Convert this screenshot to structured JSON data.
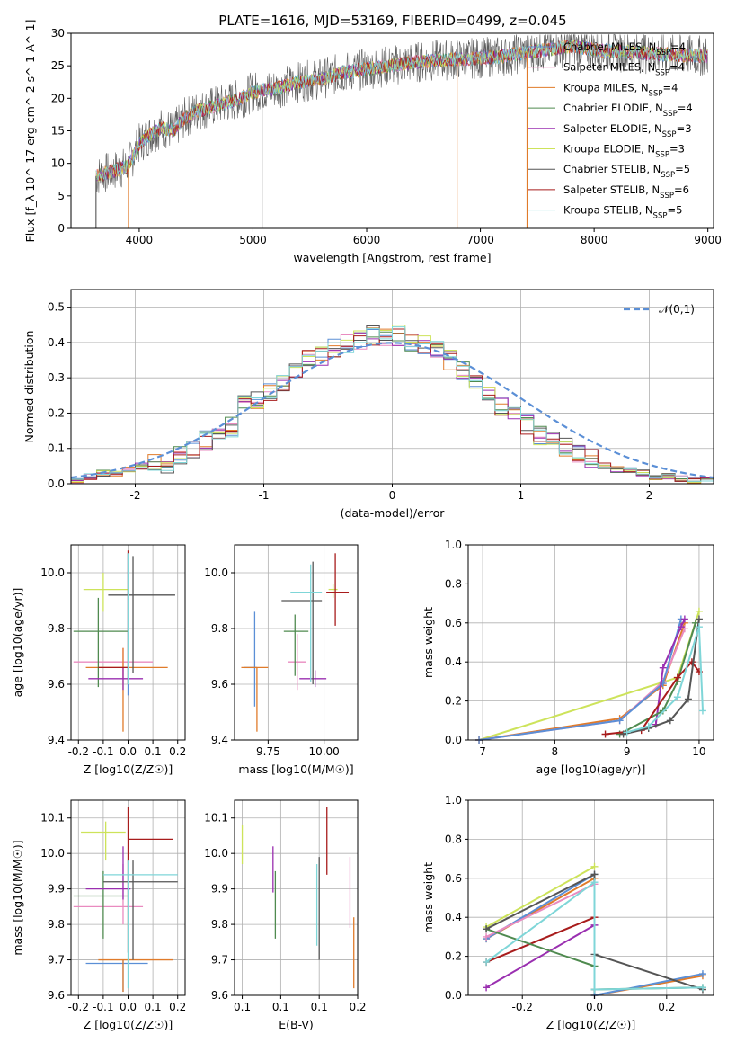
{
  "figure": {
    "title": "PLATE=1616, MJD=53169, FIBERID=0499, z=0.045"
  },
  "model_colors": {
    "Chabrier MILES": "#5b8fd6",
    "Salpeter MILES": "#e98bc0",
    "Kroupa MILES": "#e07b2a",
    "Chabrier ELODIE": "#4f8a4f",
    "Salpeter ELODIE": "#9a2fb0",
    "Kroupa ELODIE": "#cde35a",
    "Chabrier STELIB": "#555555",
    "Salpeter STELIB": "#a81c1c",
    "Kroupa STELIB": "#7fd6d8"
  },
  "chart_data": [
    {
      "type": "line",
      "panel": "spectrum",
      "title": "PLATE=1616, MJD=53169, FIBERID=0499, z=0.045",
      "xlabel": "wavelength [Angstrom, rest frame]",
      "ylabel": "Flux [f_λ 10^-17 erg cm^-2 s^-1 A^-1]",
      "xlim": [
        3400,
        9050
      ],
      "ylim": [
        0,
        30
      ],
      "xticks": [
        4000,
        5000,
        6000,
        7000,
        8000,
        9000
      ],
      "yticks": [
        0,
        5,
        10,
        15,
        20,
        25,
        30
      ],
      "legend_position": "top-right",
      "series": [
        {
          "name": "Chabrier MILES, N_SSP=4"
        },
        {
          "name": "Salpeter MILES, N_SSP=4"
        },
        {
          "name": "Kroupa MILES, N_SSP=4"
        },
        {
          "name": "Chabrier ELODIE, N_SSP=4"
        },
        {
          "name": "Salpeter ELODIE, N_SSP=3"
        },
        {
          "name": "Kroupa ELODIE, N_SSP=3"
        },
        {
          "name": "Chabrier STELIB, N_SSP=5"
        },
        {
          "name": "Salpeter STELIB, N_SSP=6"
        },
        {
          "name": "Kroupa STELIB, N_SSP=5"
        }
      ],
      "continuum_points": {
        "x": [
          3620,
          3700,
          3800,
          3900,
          4000,
          4100,
          4200,
          4300,
          4400,
          4500,
          4700,
          4900,
          5000,
          5200,
          5400,
          5600,
          5800,
          6000,
          6200,
          6400,
          6600,
          6800,
          7000,
          7200,
          7400,
          7600,
          7800,
          8000,
          8200,
          8400,
          8600,
          8800,
          9000
        ],
        "y": [
          8.0,
          8.5,
          9.0,
          9.5,
          13.0,
          14.5,
          15.5,
          15.0,
          17.0,
          18.0,
          19.0,
          20.0,
          21.0,
          21.5,
          22.5,
          23.0,
          24.0,
          24.5,
          25.0,
          25.5,
          25.8,
          26.0,
          26.2,
          26.5,
          27.0,
          27.5,
          28.0,
          27.5,
          27.2,
          27.0,
          26.8,
          26.6,
          26.5
        ]
      },
      "spike_lines": [
        {
          "x": 3620,
          "color": "#555555"
        },
        {
          "x": 3905,
          "color": "#e07b2a"
        },
        {
          "x": 5080,
          "color": "#555555"
        },
        {
          "x": 6795,
          "color": "#e07b2a"
        },
        {
          "x": 7410,
          "color": "#e07b2a"
        }
      ]
    },
    {
      "type": "line",
      "panel": "residual histogram",
      "xlabel": "(data-model)/error",
      "ylabel": "Normed distribution",
      "xlim": [
        -2.5,
        2.5
      ],
      "ylim": [
        0,
        0.55
      ],
      "xticks": [
        -2,
        -1,
        0,
        1,
        2
      ],
      "yticks": [
        0.0,
        0.1,
        0.2,
        0.3,
        0.4,
        0.5
      ],
      "grid": true,
      "legend_position": "top-right",
      "reference_curve": {
        "name": "𝒩(0,1)",
        "style": "dashed",
        "color": "#5b8fd6"
      },
      "bin_width": 0.1,
      "bin_start": -2.5,
      "approx_heights": [
        0.01,
        0.02,
        0.03,
        0.03,
        0.04,
        0.05,
        0.06,
        0.06,
        0.08,
        0.1,
        0.12,
        0.13,
        0.16,
        0.22,
        0.24,
        0.26,
        0.29,
        0.31,
        0.35,
        0.36,
        0.38,
        0.4,
        0.41,
        0.42,
        0.41,
        0.42,
        0.4,
        0.39,
        0.38,
        0.35,
        0.32,
        0.28,
        0.25,
        0.22,
        0.2,
        0.17,
        0.14,
        0.12,
        0.1,
        0.08,
        0.07,
        0.05,
        0.04,
        0.04,
        0.03,
        0.02,
        0.02,
        0.015,
        0.01,
        0.01
      ]
    },
    {
      "type": "scatter",
      "panel": "age vs Z",
      "xlabel": "Z [log10(Z/Z☉)]",
      "ylabel": "age [log10(age/yr)]",
      "xlim": [
        -0.23,
        0.23
      ],
      "ylim": [
        9.4,
        10.1
      ],
      "xticks": [
        -0.2,
        -0.1,
        0.0,
        0.1,
        0.2
      ],
      "yticks": [
        9.4,
        9.6,
        9.8,
        10.0
      ],
      "grid": true,
      "points": [
        {
          "model": "Chabrier MILES",
          "x": 0.0,
          "y": 9.62,
          "xerr": [
            0.0,
            0.0
          ],
          "yerr": [
            0.06,
            0.45
          ]
        },
        {
          "model": "Salpeter MILES",
          "x": -0.02,
          "y": 9.68,
          "xerr": [
            0.2,
            0.12
          ],
          "yerr": [
            0.06,
            0.05
          ]
        },
        {
          "model": "Kroupa MILES",
          "x": -0.02,
          "y": 9.66,
          "xerr": [
            0.15,
            0.18
          ],
          "yerr": [
            0.23,
            0.07
          ]
        },
        {
          "model": "Chabrier ELODIE",
          "x": -0.12,
          "y": 9.79,
          "xerr": [
            0.1,
            0.12
          ],
          "yerr": [
            0.2,
            0.12
          ]
        },
        {
          "model": "Salpeter ELODIE",
          "x": -0.02,
          "y": 9.62,
          "xerr": [
            0.14,
            0.08
          ],
          "yerr": [
            0.04,
            0.04
          ]
        },
        {
          "model": "Kroupa ELODIE",
          "x": -0.1,
          "y": 9.94,
          "xerr": [
            0.08,
            0.1
          ],
          "yerr": [
            0.08,
            0.06
          ]
        },
        {
          "model": "Chabrier STELIB",
          "x": 0.02,
          "y": 9.92,
          "xerr": [
            0.1,
            0.17
          ],
          "yerr": [
            0.28,
            0.14
          ]
        },
        {
          "model": "Salpeter STELIB",
          "x": 0.0,
          "y": 9.66,
          "xerr": [
            0.12,
            0.0
          ],
          "yerr": [
            0.06,
            0.42
          ]
        },
        {
          "model": "Kroupa STELIB",
          "x": 0.0,
          "y": 9.66,
          "xerr": [
            0.0,
            0.0
          ],
          "yerr": [
            0.06,
            0.41
          ]
        }
      ]
    },
    {
      "type": "scatter",
      "panel": "age vs mass",
      "xlabel": "mass [log10(M/M☉)]",
      "ylabel": "",
      "xlim": [
        9.6,
        10.15
      ],
      "ylim": [
        9.4,
        10.1
      ],
      "xticks": [
        9.75,
        10.0
      ],
      "yticks": [
        9.4,
        9.6,
        9.8,
        10.0
      ],
      "grid": true,
      "points": [
        {
          "model": "Chabrier MILES",
          "x": 9.69,
          "y": 9.66,
          "xerr": [
            0.05,
            0.01
          ],
          "yerr": [
            0.14,
            0.2
          ]
        },
        {
          "model": "Salpeter MILES",
          "x": 9.88,
          "y": 9.68,
          "xerr": [
            0.04,
            0.04
          ],
          "yerr": [
            0.1,
            0.1
          ]
        },
        {
          "model": "Kroupa MILES",
          "x": 9.7,
          "y": 9.66,
          "xerr": [
            0.07,
            0.05
          ],
          "yerr": [
            0.23,
            0.0
          ]
        },
        {
          "model": "Chabrier ELODIE",
          "x": 9.87,
          "y": 9.79,
          "xerr": [
            0.05,
            0.06
          ],
          "yerr": [
            0.16,
            0.06
          ]
        },
        {
          "model": "Salpeter ELODIE",
          "x": 9.96,
          "y": 9.62,
          "xerr": [
            0.07,
            0.05
          ],
          "yerr": [
            0.03,
            0.03
          ]
        },
        {
          "model": "Kroupa ELODIE",
          "x": 10.04,
          "y": 9.94,
          "xerr": [
            0.02,
            0.02
          ],
          "yerr": [
            0.03,
            0.02
          ]
        },
        {
          "model": "Chabrier STELIB",
          "x": 9.95,
          "y": 9.9,
          "xerr": [
            0.14,
            0.04
          ],
          "yerr": [
            0.3,
            0.14
          ]
        },
        {
          "model": "Salpeter STELIB",
          "x": 10.05,
          "y": 9.93,
          "xerr": [
            0.04,
            0.06
          ],
          "yerr": [
            0.12,
            0.14
          ]
        },
        {
          "model": "Kroupa STELIB",
          "x": 9.94,
          "y": 9.93,
          "xerr": [
            0.09,
            0.05
          ],
          "yerr": [
            0.32,
            0.1
          ]
        }
      ]
    },
    {
      "type": "line",
      "panel": "mass weight vs age",
      "xlabel": "age [log10(age/yr)]",
      "ylabel": "mass weight",
      "xlim": [
        6.8,
        10.2
      ],
      "ylim": [
        0.0,
        1.0
      ],
      "xticks": [
        7,
        8,
        9,
        10
      ],
      "yticks": [
        0.0,
        0.2,
        0.4,
        0.6,
        0.8,
        1.0
      ],
      "grid": true,
      "series": [
        {
          "model": "Kroupa ELODIE",
          "x": [
            6.95,
            9.7,
            10.0
          ],
          "y": [
            0.0,
            0.32,
            0.66
          ]
        },
        {
          "model": "Kroupa MILES",
          "x": [
            6.95,
            8.9,
            9.5,
            9.8
          ],
          "y": [
            0.0,
            0.11,
            0.28,
            0.6
          ]
        },
        {
          "model": "Salpeter MILES",
          "x": [
            6.95,
            8.9,
            9.5,
            9.8
          ],
          "y": [
            0.0,
            0.1,
            0.3,
            0.57
          ]
        },
        {
          "model": "Chabrier MILES",
          "x": [
            6.95,
            8.9,
            9.5,
            9.75
          ],
          "y": [
            0.0,
            0.1,
            0.29,
            0.62
          ]
        },
        {
          "model": "Salpeter ELODIE",
          "x": [
            9.4,
            9.5,
            9.75,
            9.8
          ],
          "y": [
            0.08,
            0.37,
            0.58,
            0.62
          ]
        },
        {
          "model": "Chabrier ELODIE",
          "x": [
            8.9,
            9.5,
            9.7,
            9.95
          ],
          "y": [
            0.03,
            0.15,
            0.3,
            0.6
          ]
        },
        {
          "model": "Salpeter STELIB",
          "x": [
            8.7,
            9.2,
            9.7,
            9.9,
            10.0
          ],
          "y": [
            0.03,
            0.05,
            0.32,
            0.4,
            0.35
          ]
        },
        {
          "model": "Chabrier STELIB",
          "x": [
            8.95,
            9.3,
            9.6,
            9.85,
            10.0
          ],
          "y": [
            0.03,
            0.06,
            0.1,
            0.21,
            0.62
          ]
        },
        {
          "model": "Kroupa STELIB",
          "x": [
            9.0,
            9.3,
            9.7,
            10.0,
            10.05
          ],
          "y": [
            0.04,
            0.07,
            0.22,
            0.58,
            0.15
          ]
        }
      ]
    },
    {
      "type": "scatter",
      "panel": "mass vs Z",
      "xlabel": "Z [log10(Z/Z☉)]",
      "ylabel": "mass [log10(M/M☉)]",
      "xlim": [
        -0.23,
        0.23
      ],
      "ylim": [
        9.6,
        10.15
      ],
      "xticks": [
        -0.2,
        -0.1,
        0.0,
        0.1,
        0.2
      ],
      "yticks": [
        9.6,
        9.7,
        9.8,
        9.9,
        10.0,
        10.1
      ],
      "grid": true,
      "points": [
        {
          "model": "Chabrier MILES",
          "x": -0.02,
          "y": 9.69,
          "xerr": [
            0.15,
            0.1
          ],
          "yerr": [
            0.08,
            0.01
          ]
        },
        {
          "model": "Salpeter MILES",
          "x": -0.02,
          "y": 9.85,
          "xerr": [
            0.2,
            0.08
          ],
          "yerr": [
            0.05,
            0.12
          ]
        },
        {
          "model": "Kroupa MILES",
          "x": -0.02,
          "y": 9.7,
          "xerr": [
            0.1,
            0.2
          ],
          "yerr": [
            0.09,
            0.0
          ]
        },
        {
          "model": "Chabrier ELODIE",
          "x": -0.1,
          "y": 9.88,
          "xerr": [
            0.12,
            0.1
          ],
          "yerr": [
            0.12,
            0.07
          ]
        },
        {
          "model": "Salpeter ELODIE",
          "x": -0.02,
          "y": 9.9,
          "xerr": [
            0.15,
            0.03
          ],
          "yerr": [
            0.03,
            0.12
          ]
        },
        {
          "model": "Kroupa ELODIE",
          "x": -0.09,
          "y": 10.06,
          "xerr": [
            0.1,
            0.08
          ],
          "yerr": [
            0.08,
            0.03
          ]
        },
        {
          "model": "Chabrier STELIB",
          "x": 0.02,
          "y": 9.92,
          "xerr": [
            0.12,
            0.18
          ],
          "yerr": [
            0.22,
            0.06
          ]
        },
        {
          "model": "Salpeter STELIB",
          "x": 0.0,
          "y": 10.04,
          "xerr": [
            0.0,
            0.18
          ],
          "yerr": [
            0.32,
            0.09
          ]
        },
        {
          "model": "Kroupa STELIB",
          "x": 0.0,
          "y": 9.94,
          "xerr": [
            0.1,
            0.2
          ],
          "yerr": [
            0.32,
            0.04
          ]
        }
      ]
    },
    {
      "type": "scatter",
      "panel": "mass vs E(B-V)",
      "xlabel": "E(B-V)",
      "ylabel": "",
      "xlim": [
        0.04,
        0.2
      ],
      "ylim": [
        9.6,
        10.15
      ],
      "xticks": [
        0.05,
        0.1,
        0.15,
        0.2
      ],
      "yticks": [
        9.6,
        9.7,
        9.8,
        9.9,
        10.0,
        10.1
      ],
      "grid": true,
      "points": [
        {
          "model": "Kroupa ELODIE",
          "x": 0.05,
          "y": 10.02,
          "yerr": [
            0.05,
            0.06
          ]
        },
        {
          "model": "Salpeter ELODIE",
          "x": 0.09,
          "y": 9.95,
          "yerr": [
            0.06,
            0.07
          ]
        },
        {
          "model": "Chabrier ELODIE",
          "x": 0.093,
          "y": 9.85,
          "yerr": [
            0.09,
            0.1
          ]
        },
        {
          "model": "Chabrier STELIB",
          "x": 0.15,
          "y": 9.85,
          "yerr": [
            0.15,
            0.14
          ]
        },
        {
          "model": "Kroupa STELIB",
          "x": 0.147,
          "y": 9.85,
          "yerr": [
            0.11,
            0.12
          ]
        },
        {
          "model": "Salpeter STELIB",
          "x": 0.16,
          "y": 10.03,
          "yerr": [
            0.09,
            0.1
          ]
        },
        {
          "model": "Salpeter MILES",
          "x": 0.19,
          "y": 9.86,
          "yerr": [
            0.07,
            0.13
          ]
        },
        {
          "model": "Kroupa MILES",
          "x": 0.195,
          "y": 9.72,
          "yerr": [
            0.1,
            0.1
          ]
        }
      ]
    },
    {
      "type": "line",
      "panel": "mass weight vs Z",
      "xlabel": "Z [log10(Z/Z☉)]",
      "ylabel": "mass weight",
      "xlim": [
        -0.35,
        0.33
      ],
      "ylim": [
        0.0,
        1.0
      ],
      "xticks": [
        -0.2,
        0.0,
        0.2
      ],
      "yticks": [
        0.0,
        0.2,
        0.4,
        0.6,
        0.8,
        1.0
      ],
      "grid": true,
      "series": [
        {
          "model": "Kroupa ELODIE",
          "x": [
            -0.3,
            0.0
          ],
          "y": [
            0.35,
            0.66
          ]
        },
        {
          "model": "Kroupa MILES",
          "x": [
            -0.3,
            0.0,
            0.0,
            0.3
          ],
          "y": [
            0.29,
            0.6,
            0.0,
            0.1
          ]
        },
        {
          "model": "Chabrier MILES",
          "x": [
            -0.3,
            0.0,
            0.0,
            0.3
          ],
          "y": [
            0.29,
            0.62,
            0.0,
            0.11
          ]
        },
        {
          "model": "Salpeter MILES",
          "x": [
            -0.3,
            0.0,
            0.0
          ],
          "y": [
            0.3,
            0.57,
            0.03
          ]
        },
        {
          "model": "Salpeter ELODIE",
          "x": [
            -0.3,
            0.0
          ],
          "y": [
            0.04,
            0.36
          ]
        },
        {
          "model": "Salpeter STELIB",
          "x": [
            -0.3,
            0.0
          ],
          "y": [
            0.17,
            0.4
          ]
        },
        {
          "model": "Chabrier ELODIE",
          "x": [
            -0.3,
            0.0,
            0.0,
            0.3
          ],
          "y": [
            0.34,
            0.15,
            0.03,
            0.04
          ]
        },
        {
          "model": "Chabrier STELIB",
          "x": [
            -0.3,
            0.0,
            0.0,
            0.3
          ],
          "y": [
            0.34,
            0.62,
            0.21,
            0.03
          ]
        },
        {
          "model": "Kroupa STELIB",
          "x": [
            -0.3,
            0.0,
            0.0,
            0.3
          ],
          "y": [
            0.17,
            0.58,
            0.03,
            0.04
          ]
        }
      ]
    }
  ]
}
